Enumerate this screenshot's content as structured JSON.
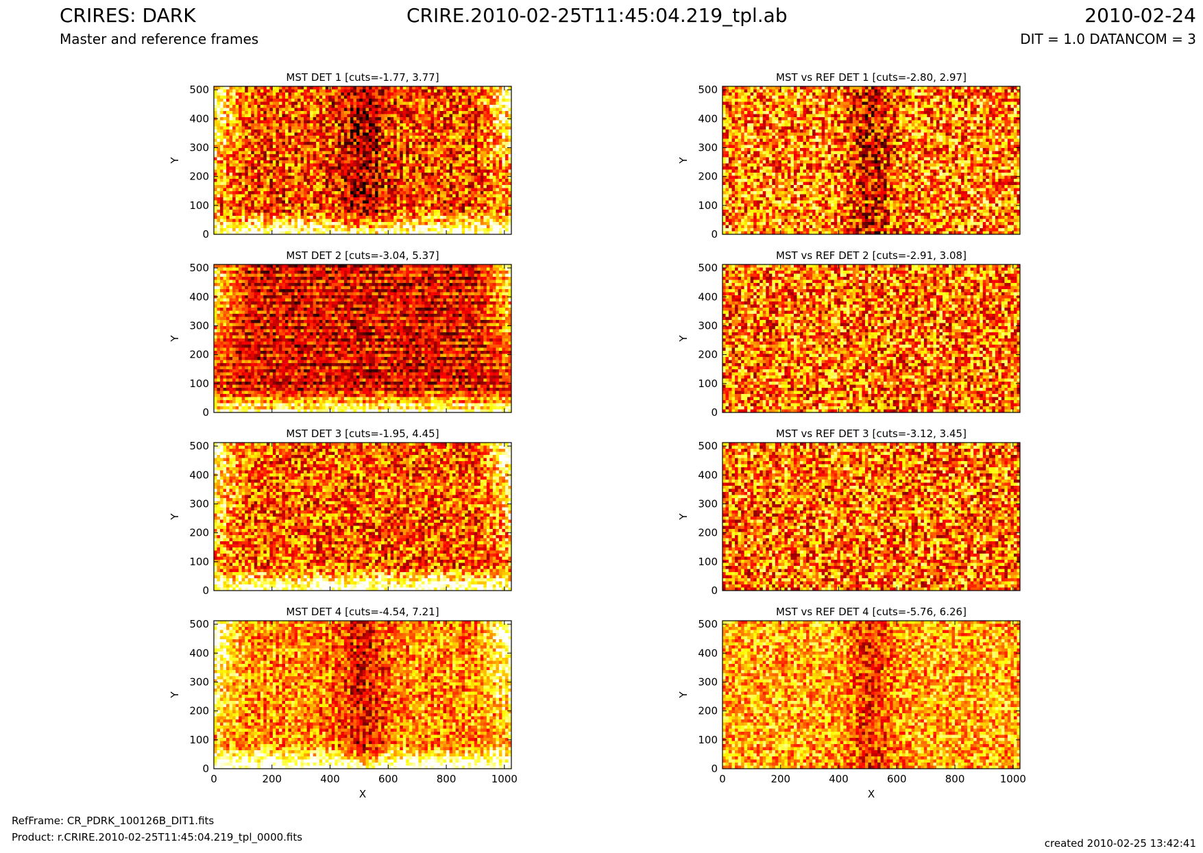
{
  "header": {
    "title": "CRIRES: DARK",
    "subtitle": "Master and reference frames",
    "file": "CRIRE.2010-02-25T11:45:04.219_tpl.ab",
    "date": "2010-02-24",
    "params": "DIT = 1.0 DATANCOM = 3"
  },
  "footer": {
    "refframe": "RefFrame: CR_PDRK_100126B_DIT1.fits",
    "product": "Product: r.CRIRE.2010-02-25T11:45:04.219_tpl_0000.fits",
    "created": "created 2010-02-25 13:42:41"
  },
  "chart_data": [
    {
      "type": "heatmap",
      "title": "MST DET 1 [cuts=-1.77, 3.77]",
      "ylabel": "Y",
      "xlabel": "",
      "xlim": [
        0,
        1024
      ],
      "ylim": [
        0,
        512
      ],
      "xticks": [],
      "yticks": [
        0,
        100,
        200,
        300,
        400,
        500
      ],
      "colormap": "hot",
      "cuts": [
        -1.77,
        3.77
      ]
    },
    {
      "type": "heatmap",
      "title": "MST vs REF DET 1 [cuts=-2.80, 2.97]",
      "ylabel": "Y",
      "xlabel": "",
      "xlim": [
        0,
        1024
      ],
      "ylim": [
        0,
        512
      ],
      "xticks": [],
      "yticks": [
        0,
        100,
        200,
        300,
        400,
        500
      ],
      "colormap": "hot",
      "cuts": [
        -2.8,
        2.97
      ]
    },
    {
      "type": "heatmap",
      "title": "MST DET 2 [cuts=-3.04, 5.37]",
      "ylabel": "Y",
      "xlabel": "",
      "xlim": [
        0,
        1024
      ],
      "ylim": [
        0,
        512
      ],
      "xticks": [],
      "yticks": [
        0,
        100,
        200,
        300,
        400,
        500
      ],
      "colormap": "hot",
      "cuts": [
        -3.04,
        5.37
      ]
    },
    {
      "type": "heatmap",
      "title": "MST vs REF DET 2 [cuts=-2.91, 3.08]",
      "ylabel": "Y",
      "xlabel": "",
      "xlim": [
        0,
        1024
      ],
      "ylim": [
        0,
        512
      ],
      "xticks": [],
      "yticks": [
        0,
        100,
        200,
        300,
        400,
        500
      ],
      "colormap": "hot",
      "cuts": [
        -2.91,
        3.08
      ]
    },
    {
      "type": "heatmap",
      "title": "MST DET 3 [cuts=-1.95, 4.45]",
      "ylabel": "Y",
      "xlabel": "",
      "xlim": [
        0,
        1024
      ],
      "ylim": [
        0,
        512
      ],
      "xticks": [],
      "yticks": [
        0,
        100,
        200,
        300,
        400,
        500
      ],
      "colormap": "hot",
      "cuts": [
        -1.95,
        4.45
      ]
    },
    {
      "type": "heatmap",
      "title": "MST vs REF DET 3 [cuts=-3.12, 3.45]",
      "ylabel": "Y",
      "xlabel": "",
      "xlim": [
        0,
        1024
      ],
      "ylim": [
        0,
        512
      ],
      "xticks": [],
      "yticks": [
        0,
        100,
        200,
        300,
        400,
        500
      ],
      "colormap": "hot",
      "cuts": [
        -3.12,
        3.45
      ]
    },
    {
      "type": "heatmap",
      "title": "MST DET 4 [cuts=-4.54, 7.21]",
      "ylabel": "Y",
      "xlabel": "X",
      "xlim": [
        0,
        1024
      ],
      "ylim": [
        0,
        512
      ],
      "xticks": [
        0,
        200,
        400,
        600,
        800,
        1000
      ],
      "yticks": [
        0,
        100,
        200,
        300,
        400,
        500
      ],
      "colormap": "hot",
      "cuts": [
        -4.54,
        7.21
      ]
    },
    {
      "type": "heatmap",
      "title": "MST vs REF DET 4 [cuts=-5.76, 6.26]",
      "ylabel": "Y",
      "xlabel": "X",
      "xlim": [
        0,
        1024
      ],
      "ylim": [
        0,
        512
      ],
      "xticks": [
        0,
        200,
        400,
        600,
        800,
        1000
      ],
      "yticks": [
        0,
        100,
        200,
        300,
        400,
        500
      ],
      "colormap": "hot",
      "cuts": [
        -5.76,
        6.26
      ]
    }
  ]
}
